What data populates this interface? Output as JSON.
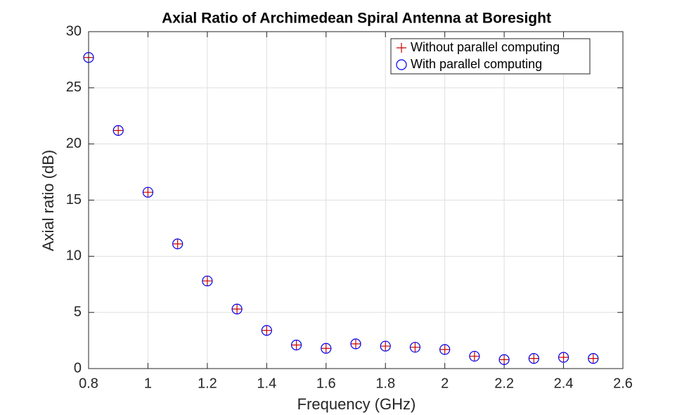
{
  "chart_data": {
    "type": "scatter",
    "title": "Axial Ratio of Archimedean Spiral Antenna at Boresight",
    "x_label": "Frequency (GHz)",
    "y_label": "Axial ratio (dB)",
    "x": [
      0.8,
      0.9,
      1.0,
      1.1,
      1.2,
      1.3,
      1.4,
      1.5,
      1.6,
      1.7,
      1.8,
      1.9,
      2.0,
      2.1,
      2.2,
      2.3,
      2.4,
      2.5
    ],
    "series": [
      {
        "name": "Without parallel computing",
        "color": "#cc0000",
        "marker": "+",
        "values": [
          27.7,
          21.2,
          15.7,
          11.1,
          7.8,
          5.3,
          3.4,
          2.1,
          1.8,
          2.2,
          2.0,
          1.9,
          1.7,
          1.1,
          0.8,
          0.9,
          1.0,
          0.9
        ]
      },
      {
        "name": "With parallel computing",
        "color": "#0000ee",
        "marker": "o",
        "values": [
          27.7,
          21.2,
          15.7,
          11.1,
          7.8,
          5.3,
          3.4,
          2.1,
          1.8,
          2.2,
          2.0,
          1.9,
          1.7,
          1.1,
          0.8,
          0.9,
          1.0,
          0.9
        ]
      }
    ],
    "xlim": [
      0.8,
      2.6
    ],
    "xticks": [
      0.8,
      1,
      1.2,
      1.4,
      1.6,
      1.8,
      2,
      2.2,
      2.4,
      2.6
    ],
    "ylim": [
      0,
      30
    ],
    "yticks": [
      0,
      5,
      10,
      15,
      20,
      25,
      30
    ],
    "grid": true,
    "legend_position": "top-right"
  }
}
